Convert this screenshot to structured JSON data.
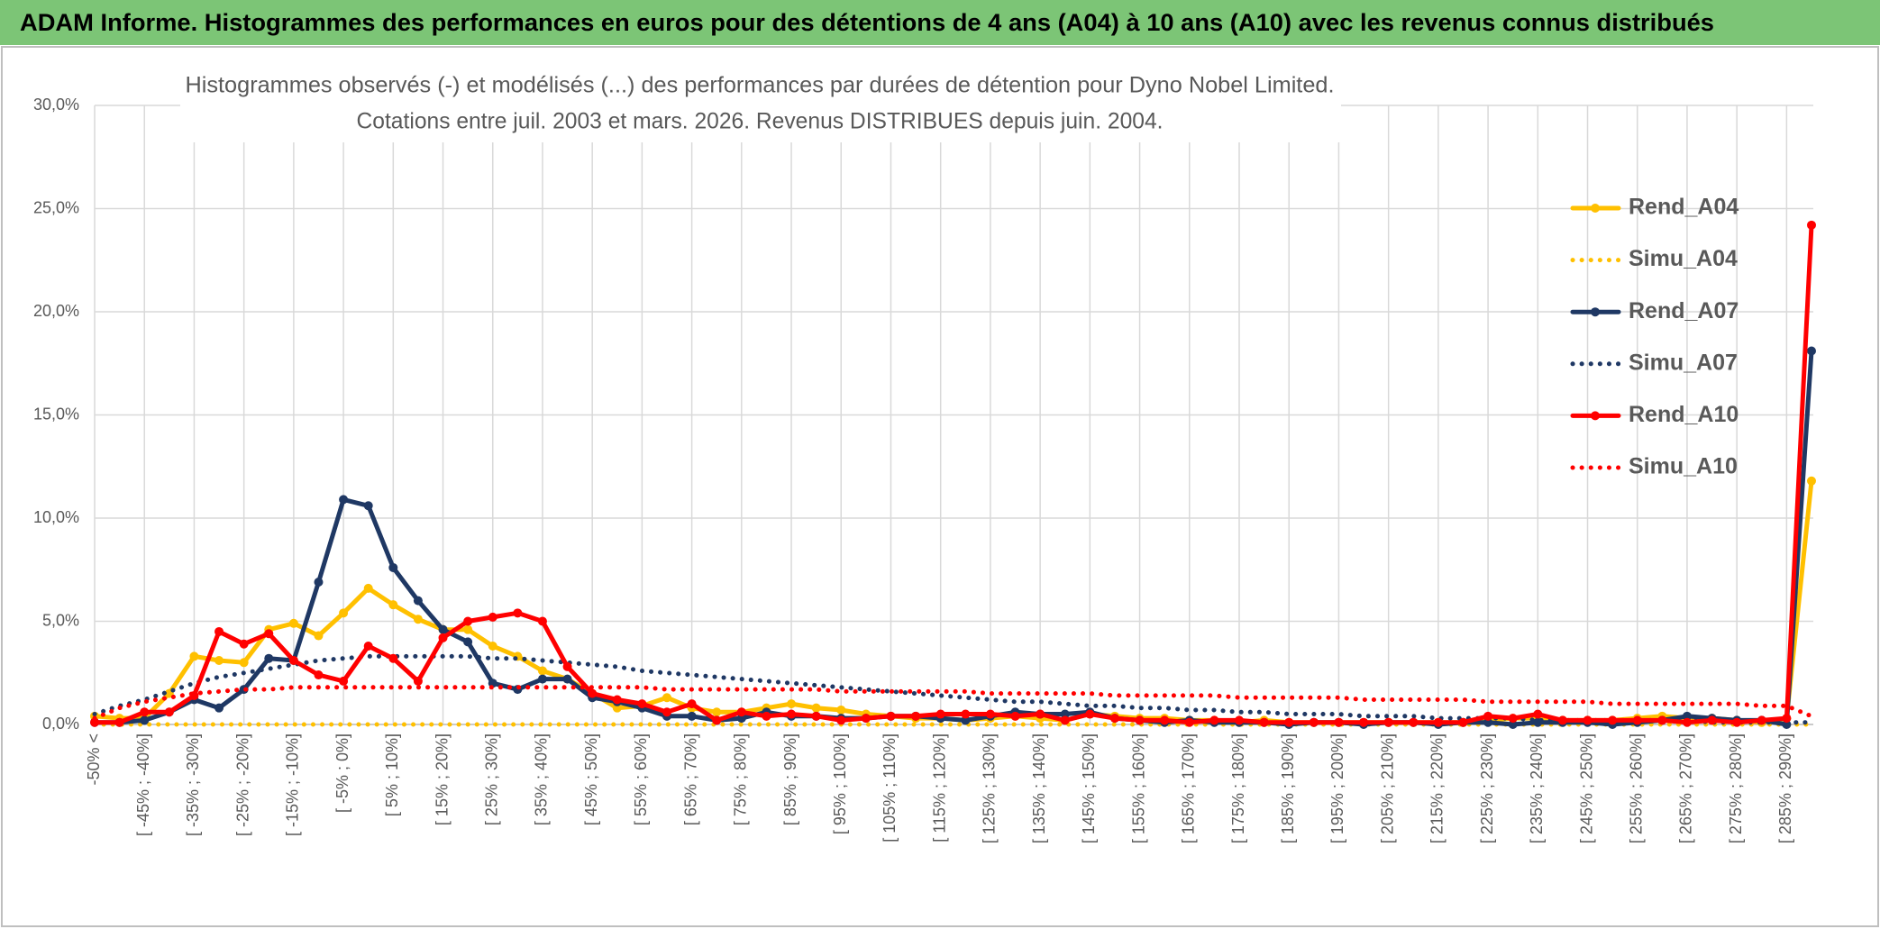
{
  "header": {
    "title": "ADAM Informe. Histogrammes des performances en euros pour des détentions de 4 ans (A04) à 10 ans (A10) avec les revenus connus distribués"
  },
  "chart_data": {
    "type": "line",
    "title": "Histogrammes observés (-) et modélisés (...) des performances par durées de détention pour Dyno Nobel Limited.",
    "subtitle": "Cotations entre juil. 2003 et mars. 2026. Revenus DISTRIBUES depuis juin. 2004.",
    "categories": [
      "-50% <",
      null,
      "[ -45% ; -40%]",
      null,
      "[ -35% ; -30%]",
      null,
      "[ -25% ; -20%]",
      null,
      "[ -15% ; -10%]",
      null,
      "[ -5% ; 0%]",
      null,
      "[ 5% ; 10%]",
      null,
      "[ 15% ; 20%]",
      null,
      "[ 25% ; 30%]",
      null,
      "[ 35% ; 40%]",
      null,
      "[ 45% ; 50%]",
      null,
      "[ 55% ; 60%]",
      null,
      "[ 65% ; 70%]",
      null,
      "[ 75% ; 80%]",
      null,
      "[ 85% ; 90%]",
      null,
      "[ 95% ; 100%]",
      null,
      "[ 105% ; 110%]",
      null,
      "[ 115% ; 120%]",
      null,
      "[ 125% ; 130%]",
      null,
      "[ 135% ; 140%]",
      null,
      "[ 145% ; 150%]",
      null,
      "[ 155% ; 160%]",
      null,
      "[ 165% ; 170%]",
      null,
      "[ 175% ; 180%]",
      null,
      "[ 185% ; 190%]",
      null,
      "[ 195% ; 200%]",
      null,
      "[ 205% ; 210%]",
      null,
      "[ 215% ; 220%]",
      null,
      "[ 225% ; 230%]",
      null,
      "[ 235% ; 240%]",
      null,
      "[ 245% ; 250%]",
      null,
      "[ 255% ; 260%]",
      null,
      "[ 265% ; 270%]",
      null,
      "[ 275% ; 280%]",
      null,
      "[ 285% ; 290%]",
      null
    ],
    "series": [
      {
        "name": "Rend_A04",
        "color": "#ffc000",
        "line_style": "solid",
        "values": [
          0.4,
          0.3,
          0.3,
          1.5,
          3.3,
          3.1,
          3.0,
          4.6,
          4.9,
          4.3,
          5.4,
          6.6,
          5.8,
          5.1,
          4.6,
          4.6,
          3.8,
          3.3,
          2.6,
          2.2,
          1.5,
          0.8,
          0.9,
          1.3,
          0.8,
          0.6,
          0.6,
          0.8,
          1.0,
          0.8,
          0.7,
          0.5,
          0.4,
          0.3,
          0.3,
          0.2,
          0.3,
          0.4,
          0.3,
          0.2,
          0.5,
          0.4,
          0.3,
          0.3,
          0.2,
          0.2,
          0.1,
          0.2,
          0.1,
          0.1,
          0.1,
          0.1,
          0.1,
          0.1,
          0.1,
          0.1,
          0.2,
          0.3,
          0.3,
          0.2,
          0.2,
          0.2,
          0.3,
          0.4,
          0.3,
          0.3,
          0.2,
          0.1,
          0.3,
          11.8
        ]
      },
      {
        "name": "Simu_A04",
        "color": "#ffc000",
        "line_style": "dotted",
        "values": [
          0,
          0,
          0,
          0,
          0,
          0,
          0,
          0,
          0,
          0,
          0,
          0,
          0,
          0,
          0,
          0,
          0,
          0,
          0,
          0,
          0,
          0,
          0,
          0,
          0,
          0,
          0,
          0,
          0,
          0,
          0,
          0,
          0,
          0,
          0,
          0,
          0,
          0,
          0,
          0,
          0,
          0,
          0,
          0,
          0,
          0,
          0,
          0,
          0,
          0,
          0,
          0,
          0,
          0,
          0,
          0,
          0,
          0,
          0,
          0,
          0,
          0,
          0,
          0,
          0,
          0,
          0,
          0,
          0,
          0
        ]
      },
      {
        "name": "Rend_A07",
        "color": "#1f3864",
        "line_style": "solid",
        "values": [
          0.1,
          0.1,
          0.2,
          0.6,
          1.2,
          0.8,
          1.7,
          3.2,
          3.1,
          6.9,
          10.9,
          10.6,
          7.6,
          6.0,
          4.6,
          4.0,
          2.0,
          1.7,
          2.2,
          2.2,
          1.3,
          1.1,
          0.8,
          0.4,
          0.4,
          0.2,
          0.3,
          0.6,
          0.4,
          0.4,
          0.3,
          0.3,
          0.4,
          0.4,
          0.3,
          0.2,
          0.4,
          0.6,
          0.5,
          0.5,
          0.6,
          0.3,
          0.2,
          0.1,
          0.2,
          0.1,
          0.1,
          0.1,
          0.0,
          0.1,
          0.1,
          0.0,
          0.1,
          0.1,
          0.0,
          0.1,
          0.1,
          0.0,
          0.1,
          0.1,
          0.1,
          0.0,
          0.1,
          0.2,
          0.4,
          0.3,
          0.2,
          0.2,
          0.0,
          18.1
        ]
      },
      {
        "name": "Simu_A07",
        "color": "#1f3864",
        "line_style": "dotted",
        "values": [
          0.5,
          0.9,
          1.2,
          1.6,
          2.0,
          2.3,
          2.5,
          2.7,
          2.9,
          3.1,
          3.2,
          3.3,
          3.3,
          3.3,
          3.3,
          3.3,
          3.2,
          3.2,
          3.1,
          3.0,
          2.9,
          2.8,
          2.6,
          2.5,
          2.4,
          2.3,
          2.2,
          2.1,
          2.0,
          1.9,
          1.8,
          1.7,
          1.6,
          1.5,
          1.4,
          1.3,
          1.2,
          1.1,
          1.1,
          1.0,
          0.9,
          0.9,
          0.8,
          0.8,
          0.7,
          0.7,
          0.6,
          0.6,
          0.5,
          0.5,
          0.5,
          0.4,
          0.4,
          0.4,
          0.3,
          0.3,
          0.3,
          0.3,
          0.2,
          0.2,
          0.2,
          0.2,
          0.2,
          0.2,
          0.2,
          0.1,
          0.1,
          0.1,
          0.1,
          0.1
        ]
      },
      {
        "name": "Rend_A10",
        "color": "#ff0000",
        "line_style": "solid",
        "values": [
          0.1,
          0.1,
          0.6,
          0.6,
          1.4,
          4.5,
          3.9,
          4.4,
          3.1,
          2.4,
          2.1,
          3.8,
          3.2,
          2.1,
          4.2,
          5.0,
          5.2,
          5.4,
          5.0,
          2.8,
          1.5,
          1.2,
          1.0,
          0.6,
          1.0,
          0.2,
          0.6,
          0.4,
          0.5,
          0.4,
          0.2,
          0.3,
          0.4,
          0.4,
          0.5,
          0.5,
          0.5,
          0.4,
          0.5,
          0.2,
          0.5,
          0.3,
          0.2,
          0.2,
          0.1,
          0.2,
          0.2,
          0.1,
          0.1,
          0.1,
          0.1,
          0.1,
          0.1,
          0.1,
          0.1,
          0.1,
          0.4,
          0.3,
          0.5,
          0.2,
          0.2,
          0.2,
          0.2,
          0.2,
          0.1,
          0.2,
          0.1,
          0.2,
          0.3,
          24.2
        ]
      },
      {
        "name": "Simu_A10",
        "color": "#ff0000",
        "line_style": "dotted",
        "values": [
          0.3,
          0.8,
          1.1,
          1.3,
          1.5,
          1.6,
          1.7,
          1.7,
          1.8,
          1.8,
          1.8,
          1.8,
          1.8,
          1.8,
          1.8,
          1.8,
          1.8,
          1.8,
          1.8,
          1.8,
          1.8,
          1.8,
          1.8,
          1.7,
          1.7,
          1.7,
          1.7,
          1.7,
          1.7,
          1.7,
          1.6,
          1.6,
          1.6,
          1.6,
          1.6,
          1.6,
          1.5,
          1.5,
          1.5,
          1.5,
          1.5,
          1.4,
          1.4,
          1.4,
          1.4,
          1.4,
          1.3,
          1.3,
          1.3,
          1.3,
          1.3,
          1.2,
          1.2,
          1.2,
          1.2,
          1.2,
          1.1,
          1.1,
          1.1,
          1.1,
          1.1,
          1.0,
          1.0,
          1.0,
          1.0,
          1.0,
          1.0,
          0.9,
          0.9,
          0.4
        ]
      }
    ],
    "ylim": [
      0,
      30
    ],
    "yticks": [
      {
        "value": 0,
        "label": "0,0%"
      },
      {
        "value": 5,
        "label": "5,0%"
      },
      {
        "value": 10,
        "label": "10,0%"
      },
      {
        "value": 15,
        "label": "15,0%"
      },
      {
        "value": 20,
        "label": "20,0%"
      },
      {
        "value": 25,
        "label": "25,0%"
      },
      {
        "value": 30,
        "label": "30,0%"
      }
    ],
    "grid": true,
    "legend": "right"
  }
}
